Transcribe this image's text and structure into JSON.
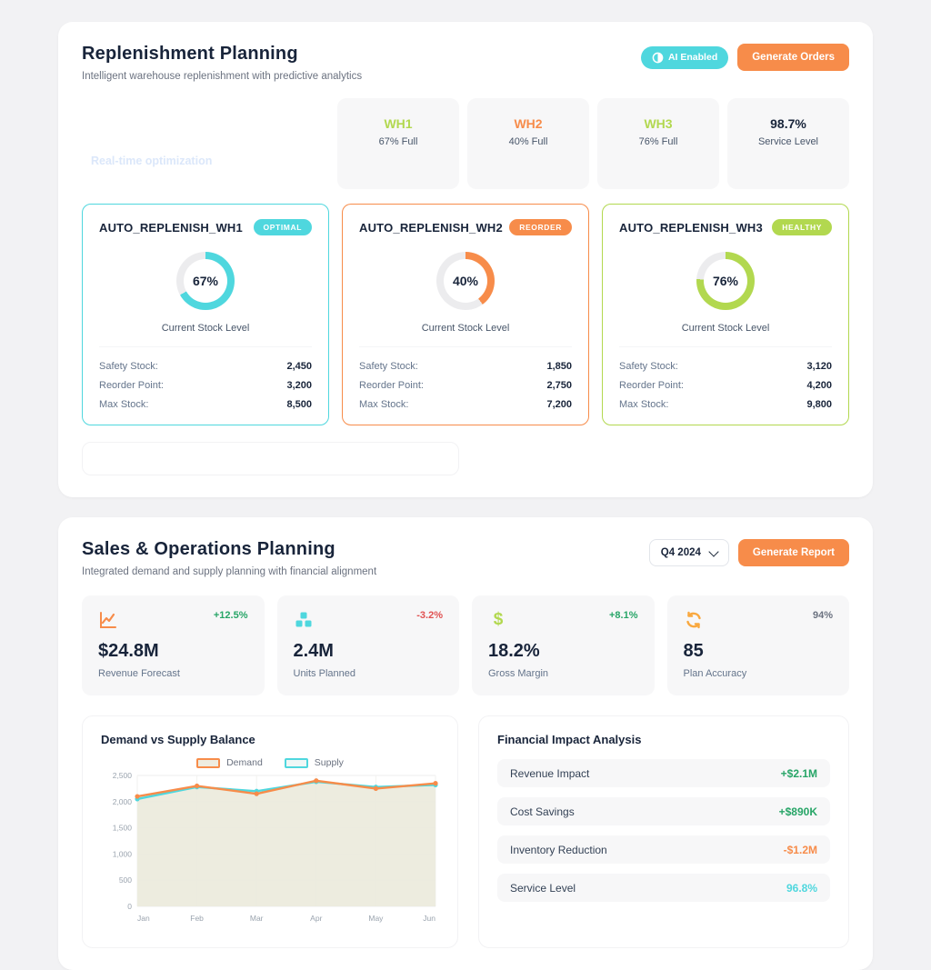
{
  "replenishment": {
    "title": "Replenishment Planning",
    "subtitle": "Intelligent warehouse replenishment with predictive analytics",
    "ai_badge": "AI Enabled",
    "generate_orders": "Generate Orders",
    "realtime_label": "Real-time optimization",
    "warehouse_stats": [
      {
        "name": "WH1",
        "sub": "67% Full",
        "color": "#b2d84f"
      },
      {
        "name": "WH2",
        "sub": "40% Full",
        "color": "#f78c4a"
      },
      {
        "name": "WH3",
        "sub": "76% Full",
        "color": "#b2d84f"
      },
      {
        "name": "98.7%",
        "sub": "Service Level",
        "color": "#18243a"
      }
    ],
    "cards": [
      {
        "title": "AUTO_REPLENISH_WH1",
        "status": "OPTIMAL",
        "color": "#4fd7de",
        "percent": 67,
        "percent_label": "67%",
        "caption": "Current Stock Level",
        "stats": [
          {
            "label": "Safety Stock:",
            "value": "2,450"
          },
          {
            "label": "Reorder Point:",
            "value": "3,200"
          },
          {
            "label": "Max Stock:",
            "value": "8,500"
          }
        ]
      },
      {
        "title": "AUTO_REPLENISH_WH2",
        "status": "REORDER",
        "color": "#f78c4a",
        "percent": 40,
        "percent_label": "40%",
        "caption": "Current Stock Level",
        "stats": [
          {
            "label": "Safety Stock:",
            "value": "1,850"
          },
          {
            "label": "Reorder Point:",
            "value": "2,750"
          },
          {
            "label": "Max Stock:",
            "value": "7,200"
          }
        ]
      },
      {
        "title": "AUTO_REPLENISH_WH3",
        "status": "HEALTHY",
        "color": "#b2d84f",
        "percent": 76,
        "percent_label": "76%",
        "caption": "Current Stock Level",
        "stats": [
          {
            "label": "Safety Stock:",
            "value": "3,120"
          },
          {
            "label": "Reorder Point:",
            "value": "4,200"
          },
          {
            "label": "Max Stock:",
            "value": "9,800"
          }
        ]
      }
    ]
  },
  "sop": {
    "title": "Sales & Operations Planning",
    "subtitle": "Integrated demand and supply planning with financial alignment",
    "quarter_select": "Q4 2024",
    "generate_report": "Generate Report",
    "kpis": [
      {
        "icon": "trend-chart-icon",
        "icon_color": "#f78c4a",
        "delta": "+12.5%",
        "delta_color": "#27a567",
        "value": "$24.8M",
        "label": "Revenue Forecast"
      },
      {
        "icon": "units-boxes-icon",
        "icon_color": "#4fd7de",
        "delta": "-3.2%",
        "delta_color": "#e05252",
        "value": "2.4M",
        "label": "Units Planned"
      },
      {
        "icon": "dollar-icon",
        "icon_color": "#b2d84f",
        "delta": "+8.1%",
        "delta_color": "#27a567",
        "value": "18.2%",
        "label": "Gross Margin"
      },
      {
        "icon": "sync-icon",
        "icon_color": "#f9a83f",
        "delta": "94%",
        "delta_color": "#6b7280",
        "value": "85",
        "label": "Plan Accuracy"
      }
    ],
    "financial": {
      "title": "Financial Impact Analysis",
      "rows": [
        {
          "label": "Revenue Impact",
          "value": "+$2.1M",
          "color": "#27a567"
        },
        {
          "label": "Cost Savings",
          "value": "+$890K",
          "color": "#27a567"
        },
        {
          "label": "Inventory Reduction",
          "value": "-$1.2M",
          "color": "#f78c4a"
        },
        {
          "label": "Service Level",
          "value": "96.8%",
          "color": "#4fd7de"
        }
      ]
    }
  },
  "chart_data": {
    "type": "line",
    "title": "Demand vs Supply Balance",
    "categories": [
      "Jan",
      "Feb",
      "Mar",
      "Apr",
      "May",
      "Jun"
    ],
    "series": [
      {
        "name": "Demand",
        "color": "#f78c4a",
        "fill": "rgba(236,234,221,0.9)",
        "values": [
          2100,
          2300,
          2150,
          2400,
          2250,
          2350
        ]
      },
      {
        "name": "Supply",
        "color": "#4fd7de",
        "fill": "rgba(225,240,238,0.55)",
        "values": [
          2050,
          2280,
          2200,
          2380,
          2280,
          2320
        ]
      }
    ],
    "ylim": [
      0,
      2500
    ],
    "yticks": [
      0,
      500,
      1000,
      1500,
      2000,
      2500
    ],
    "grid": true,
    "legend_position": "top"
  }
}
